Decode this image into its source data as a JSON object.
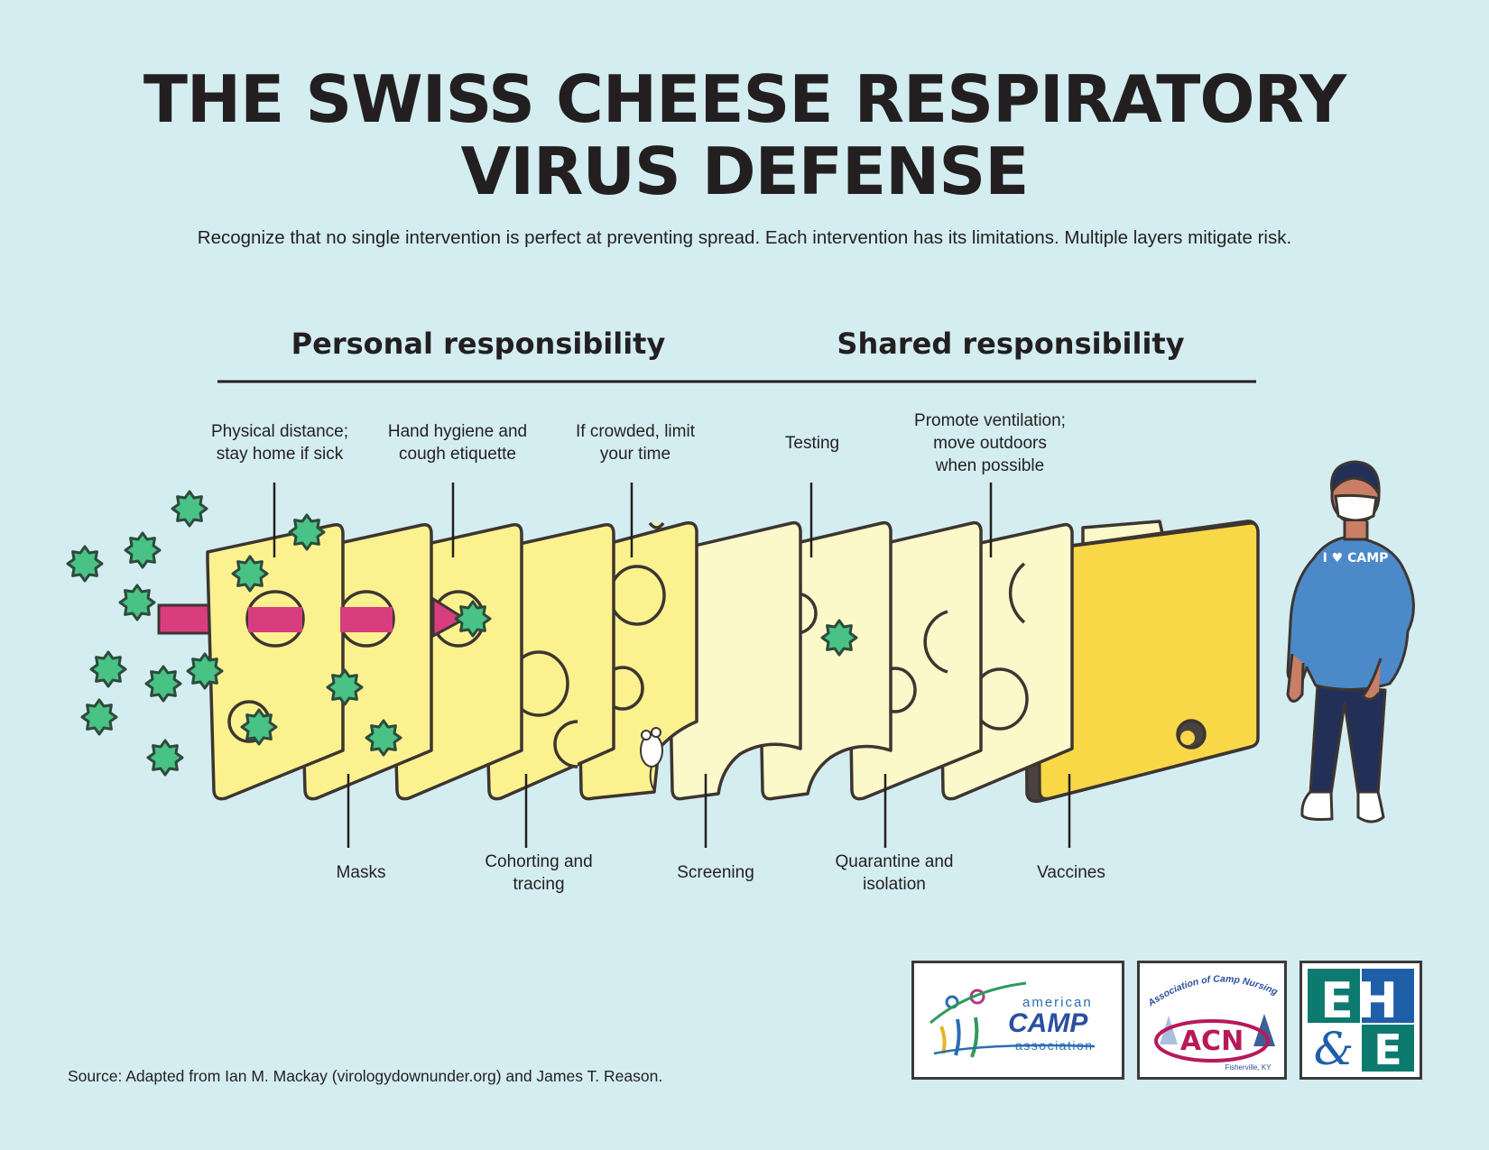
{
  "title_line1": "THE SWISS CHEESE RESPIRATORY",
  "title_line2": "VIRUS DEFENSE",
  "subtitle": "Recognize that no single intervention is perfect at preventing spread. Each intervention has its limitations. Multiple layers mitigate risk.",
  "groups": {
    "personal": "Personal responsibility",
    "shared": "Shared responsibility"
  },
  "layers": {
    "physical_distance": "Physical distance;\nstay home if sick",
    "hand_hygiene": "Hand hygiene and\ncough etiquette",
    "crowded": "If crowded, limit\nyour time",
    "testing": "Testing",
    "ventilation": "Promote ventilation;\nmove outdoors\nwhen possible",
    "masks": "Masks",
    "cohorting": "Cohorting and\ntracing",
    "screening": "Screening",
    "quarantine": "Quarantine and\nisolation",
    "vaccines": "Vaccines"
  },
  "person_shirt_text": "I ♥ CAMP",
  "logos": {
    "aca_line1": "american",
    "aca_line2": "CAMP",
    "aca_line3": "association",
    "acn_arc": "Association of Camp Nursing",
    "acn_letters": "ACN",
    "acn_location": "Fisherville, KY",
    "ehe_top": "EH",
    "ehe_amp": "&",
    "ehe_bottom": "E"
  },
  "source": "Source: Adapted from Ian M. Mackay (virologydownunder.org) and James T. Reason.",
  "colors": {
    "background": "#d4edf1",
    "cheese_yellow": "#fbf28f",
    "cheese_pale": "#fbf8c9",
    "cheese_gold": "#f9d848",
    "virus_green": "#49c285",
    "arrow_pink": "#d83d7e",
    "hoodie_blue": "#4b89c9",
    "pants_navy": "#223058"
  }
}
